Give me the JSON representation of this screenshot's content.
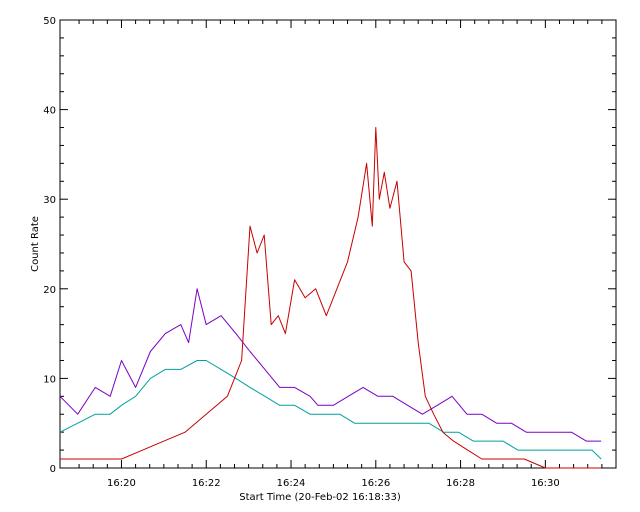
{
  "chart_data": {
    "type": "line",
    "xlabel": "Start Time (20-Feb-02 16:18:33)",
    "ylabel": "Count Rate",
    "xlim": [
      "16:18:33",
      "16:31:40"
    ],
    "ylim": [
      0,
      50
    ],
    "x_tick_labels": [
      "16:20",
      "16:22",
      "16:24",
      "16:26",
      "16:28",
      "16:30"
    ],
    "y_tick_labels": [
      "0",
      "10",
      "20",
      "30",
      "40",
      "50"
    ],
    "grid": false,
    "legend": "none",
    "series": [
      {
        "color": "#7a00c8",
        "x": [
          "16:18:33",
          "16:18:58",
          "16:19:23",
          "16:19:44",
          "16:20:00",
          "16:20:20",
          "16:20:41",
          "16:21:02",
          "16:21:24",
          "16:21:35",
          "16:21:47",
          "16:22:00",
          "16:22:21",
          "16:22:42",
          "16:23:02",
          "16:23:23",
          "16:23:44",
          "16:24:05",
          "16:24:27",
          "16:24:38",
          "16:25:00",
          "16:25:21",
          "16:25:42",
          "16:26:03",
          "16:26:24",
          "16:26:45",
          "16:27:06",
          "16:27:27",
          "16:27:48",
          "16:28:09",
          "16:28:30",
          "16:28:51",
          "16:29:12",
          "16:29:33",
          "16:29:54",
          "16:30:15",
          "16:30:37",
          "16:30:58",
          "16:31:19"
        ],
        "y": [
          8,
          6,
          9,
          8,
          12,
          9,
          13,
          15,
          16,
          14,
          20,
          16,
          17,
          15,
          13,
          11,
          9,
          9,
          8,
          7,
          7,
          8,
          9,
          8,
          8,
          7,
          6,
          7,
          8,
          6,
          6,
          5,
          5,
          4,
          4,
          4,
          4,
          3,
          3
        ]
      },
      {
        "color": "#00a0a0",
        "x": [
          "16:18:33",
          "16:18:58",
          "16:19:23",
          "16:19:44",
          "16:20:00",
          "16:20:20",
          "16:20:41",
          "16:21:02",
          "16:21:24",
          "16:21:47",
          "16:22:00",
          "16:22:21",
          "16:22:42",
          "16:23:02",
          "16:23:23",
          "16:23:44",
          "16:24:05",
          "16:24:27",
          "16:24:48",
          "16:25:09",
          "16:25:30",
          "16:25:51",
          "16:26:12",
          "16:26:33",
          "16:26:54",
          "16:27:15",
          "16:27:36",
          "16:27:57",
          "16:28:18",
          "16:28:39",
          "16:29:00",
          "16:29:21",
          "16:29:42",
          "16:30:03",
          "16:30:24",
          "16:30:45",
          "16:31:06",
          "16:31:19"
        ],
        "y": [
          4,
          5,
          6,
          6,
          7,
          8,
          10,
          11,
          11,
          12,
          12,
          11,
          10,
          9,
          8,
          7,
          7,
          6,
          6,
          6,
          5,
          5,
          5,
          5,
          5,
          5,
          4,
          4,
          3,
          3,
          3,
          2,
          2,
          2,
          2,
          2,
          2,
          1
        ]
      },
      {
        "color": "#c80000",
        "x": [
          "16:18:33",
          "16:19:00",
          "16:19:30",
          "16:20:00",
          "16:20:30",
          "16:21:00",
          "16:21:30",
          "16:22:00",
          "16:22:30",
          "16:22:50",
          "16:23:02",
          "16:23:12",
          "16:23:22",
          "16:23:32",
          "16:23:42",
          "16:23:52",
          "16:24:05",
          "16:24:20",
          "16:24:35",
          "16:24:50",
          "16:25:05",
          "16:25:20",
          "16:25:35",
          "16:25:47",
          "16:25:55",
          "16:26:00",
          "16:26:05",
          "16:26:12",
          "16:26:20",
          "16:26:30",
          "16:26:40",
          "16:26:50",
          "16:27:00",
          "16:27:10",
          "16:27:22",
          "16:27:35",
          "16:27:50",
          "16:28:10",
          "16:28:30",
          "16:29:00",
          "16:29:30",
          "16:30:00",
          "16:30:30",
          "16:31:00",
          "16:31:19"
        ],
        "y": [
          1,
          1,
          1,
          1,
          2,
          3,
          4,
          6,
          8,
          12,
          27,
          24,
          26,
          16,
          17,
          15,
          21,
          19,
          20,
          17,
          20,
          23,
          28,
          34,
          27,
          38,
          30,
          33,
          29,
          32,
          23,
          22,
          14,
          8,
          6,
          4,
          3,
          2,
          1,
          1,
          1,
          0,
          0,
          0,
          0
        ]
      }
    ]
  }
}
